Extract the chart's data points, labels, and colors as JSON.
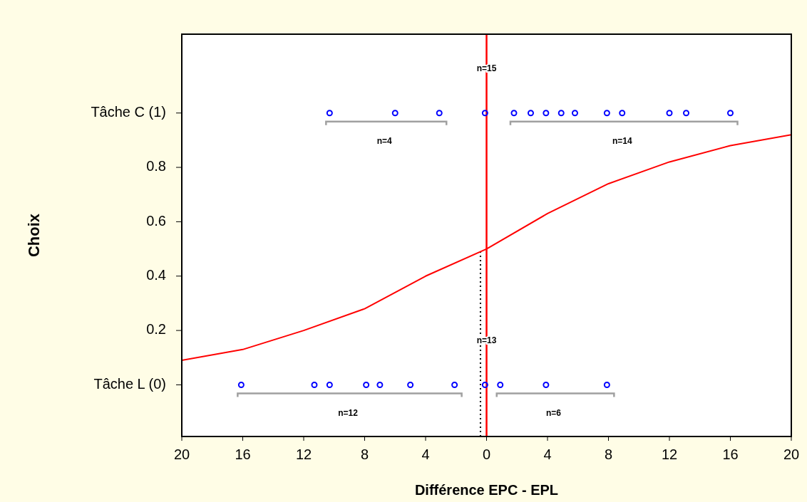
{
  "chart_data": {
    "type": "line",
    "xlabel": "Différence EPC - EPL",
    "ylabel": "Choix",
    "xlim": [
      -20,
      20
    ],
    "ylim": [
      -0.19,
      1.29
    ],
    "xticks": [
      {
        "value": -20,
        "label": "20"
      },
      {
        "value": -16,
        "label": "16"
      },
      {
        "value": -12,
        "label": "12"
      },
      {
        "value": -8,
        "label": "8"
      },
      {
        "value": -4,
        "label": "4"
      },
      0,
      4,
      8,
      12,
      16,
      20
    ],
    "yticks": [
      {
        "value": 0,
        "label": "Tâche L (0)"
      },
      0.2,
      0.4,
      0.6,
      0.8,
      {
        "value": 1,
        "label": "Tâche C (1)"
      }
    ],
    "grid": false,
    "series": [
      {
        "color": "#ff0000",
        "marker": "none",
        "line_style": "solid",
        "x": [
          -20,
          -16,
          -12,
          -8,
          -4,
          0,
          4,
          8,
          12,
          16,
          20
        ],
        "values": [
          0.09,
          0.13,
          0.2,
          0.28,
          0.4,
          0.5,
          0.63,
          0.74,
          0.82,
          0.88,
          0.92
        ]
      },
      {
        "type": "scatter",
        "color": "#0000ff",
        "marker": "circle",
        "x": [
          -10.3,
          -6.0,
          -3.1,
          -0.1,
          1.8,
          2.9,
          3.9,
          4.9,
          5.8,
          7.9,
          8.9,
          12.0,
          13.1,
          16.0
        ],
        "values": [
          1,
          1,
          1,
          1,
          1,
          1,
          1,
          1,
          1,
          1,
          1,
          1,
          1,
          1
        ]
      },
      {
        "type": "scatter",
        "color": "#0000ff",
        "marker": "circle",
        "x": [
          -16.1,
          -11.3,
          -10.3,
          -7.9,
          -7.0,
          -5.0,
          -2.1,
          -0.1,
          0.9,
          3.9,
          7.9
        ],
        "values": [
          0,
          0,
          0,
          0,
          0,
          0,
          0,
          0,
          0,
          0,
          0
        ]
      }
    ],
    "ref_lines": [
      {
        "axis": "x",
        "value": 0,
        "color": "#ff0000",
        "line_style": "solid"
      },
      {
        "axis": "x",
        "value": -0.4,
        "color": "#000000",
        "line_style": "dotted"
      }
    ],
    "annotations": [
      "n=15",
      "n=4",
      "n=14",
      "n=13",
      "n=12",
      "n=6"
    ]
  }
}
